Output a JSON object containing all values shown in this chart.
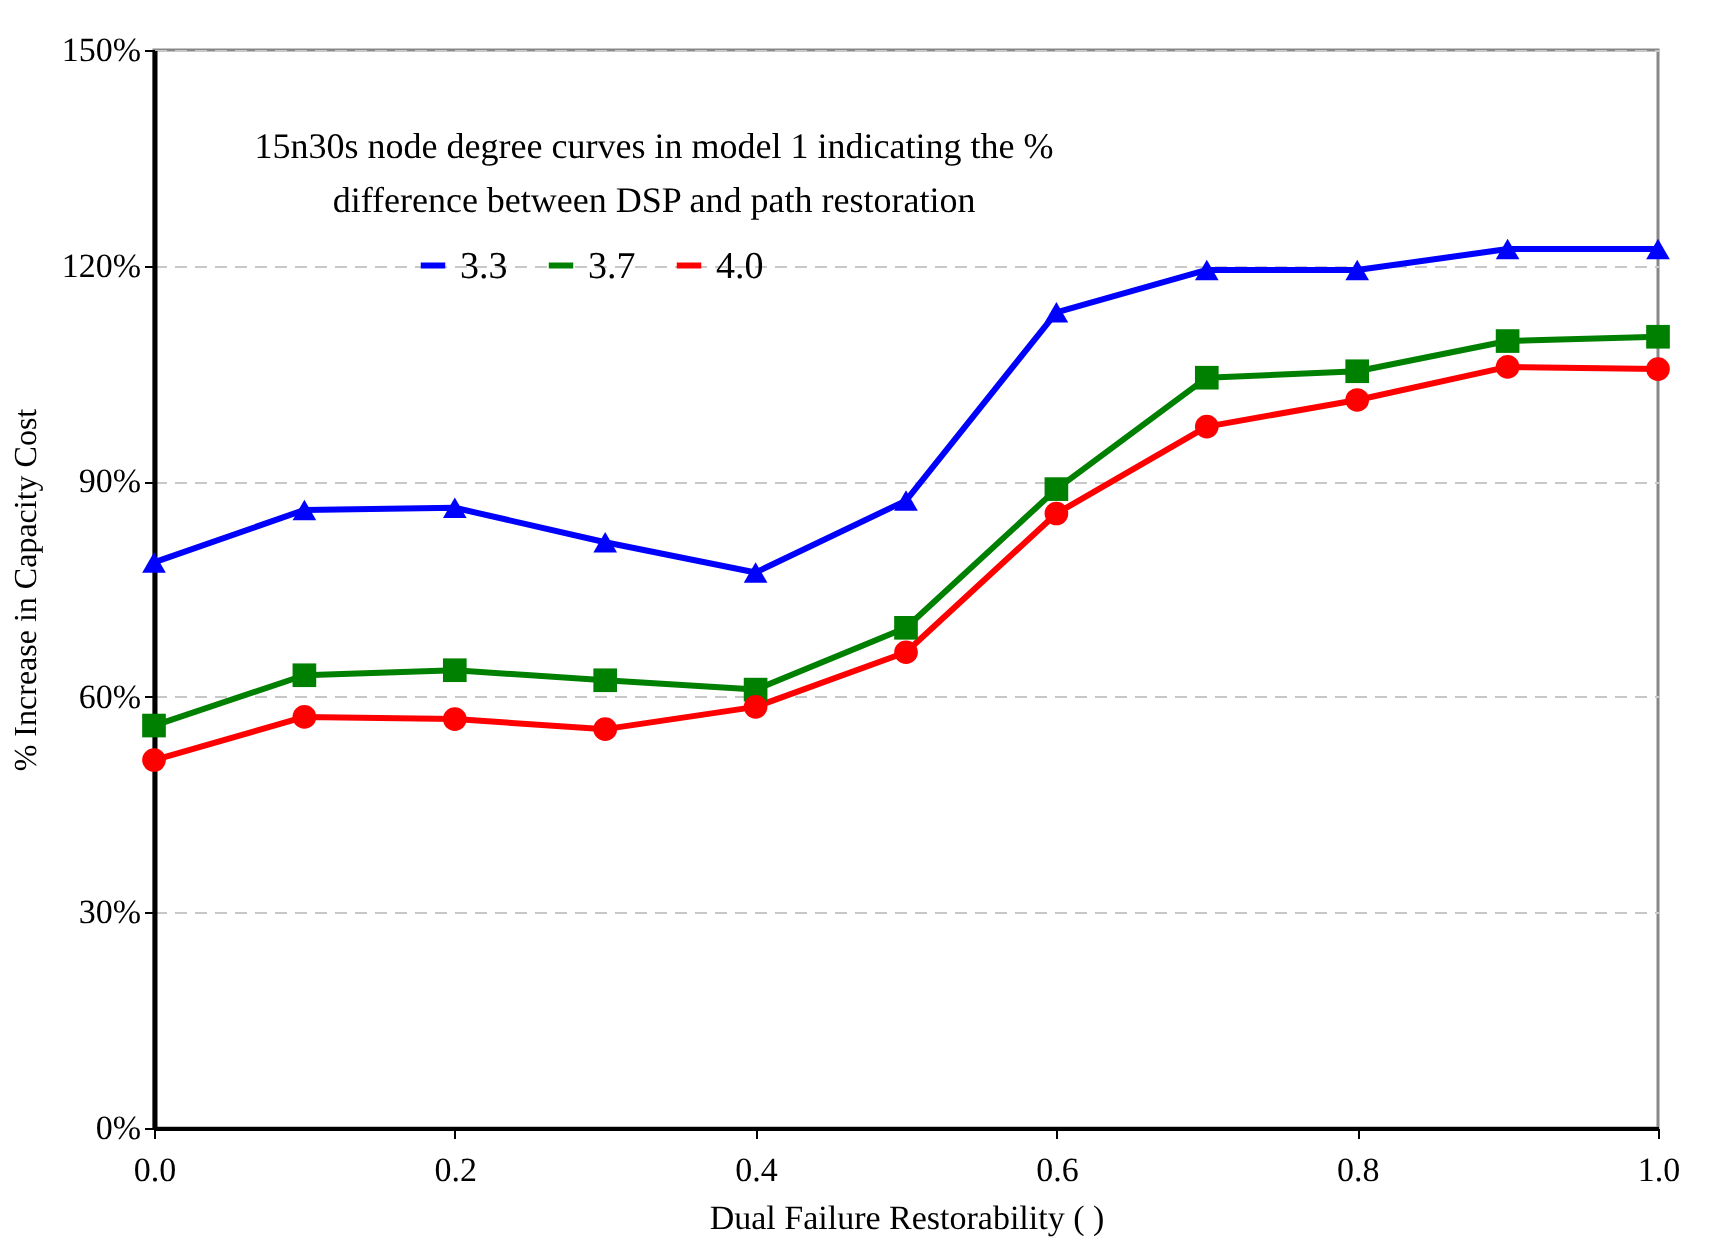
{
  "chart_data": {
    "type": "line",
    "title": "15n30s node degree curves in  model 1 indicating the %\ndifference between DSP and path restoration",
    "xlabel": "Dual Failure Restorability (     )",
    "ylabel": "% Increase in Capacity Cost",
    "x": [
      0.0,
      0.1,
      0.2,
      0.3,
      0.4,
      0.5,
      0.6,
      0.7,
      0.8,
      0.9,
      1.0
    ],
    "series": [
      {
        "name": "3.3",
        "color": "#0000ff",
        "marker": "triangle",
        "values": [
          78.7,
          86,
          86.3,
          81.5,
          77.3,
          87.3,
          113.5,
          119.4,
          119.4,
          122.3,
          122.3
        ]
      },
      {
        "name": "3.7",
        "color": "#008000",
        "marker": "square",
        "values": [
          56,
          63,
          63.7,
          62.3,
          61,
          69.6,
          88.9,
          104.4,
          105.3,
          109.5,
          110.1
        ]
      },
      {
        "name": "4.0",
        "color": "#ff0000",
        "marker": "circle",
        "values": [
          51.2,
          57.2,
          56.9,
          55.5,
          58.6,
          66.2,
          85.5,
          97.6,
          101.3,
          105.9,
          105.6
        ]
      }
    ],
    "xlim": [
      0,
      1
    ],
    "xticks": [
      {
        "value": 0,
        "label": "0.0"
      },
      0.2,
      0.4,
      0.6,
      0.8,
      {
        "value": 1,
        "label": "1.0"
      }
    ],
    "ylim": [
      0,
      150
    ],
    "yticks": [
      {
        "value": 0,
        "label": "0%"
      },
      {
        "value": 30,
        "label": "30%"
      },
      {
        "value": 60,
        "label": "60%"
      },
      {
        "value": 90,
        "label": "90%"
      },
      {
        "value": 120,
        "label": "120%"
      },
      {
        "value": 150,
        "label": "150%"
      }
    ],
    "grid": "y",
    "legend": "top",
    "line_style": "solid"
  }
}
